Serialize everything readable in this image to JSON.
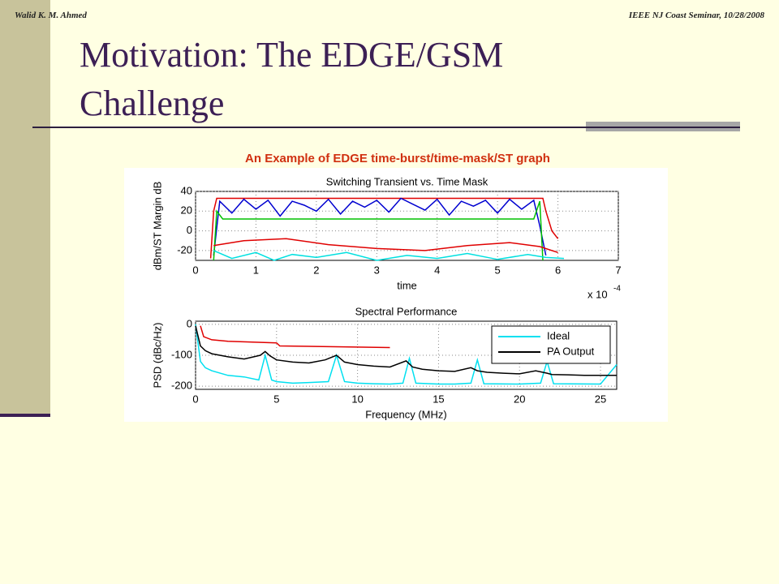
{
  "header": {
    "left": "Walid K. M. Ahmed",
    "right": "IEEE NJ Coast Seminar, 10/28/2008"
  },
  "title": [
    "Motivation: The EDGE/GSM",
    "Challenge"
  ],
  "caption": "An Example of EDGE time-burst/time-mask/ST graph",
  "chart_data": [
    {
      "type": "line",
      "title": "Switching Transient vs. Time Mask",
      "x_label": "time",
      "y_label": "dBm/ST Margin dB",
      "annotations": [
        "x 10",
        "-4"
      ],
      "xlim": [
        0,
        7
      ],
      "xticks": [
        0,
        1,
        2,
        3,
        4,
        5,
        6,
        7
      ],
      "ylim": [
        -30,
        40
      ],
      "yticks": [
        -20,
        0,
        20,
        40
      ],
      "grid": true,
      "series": [
        {
          "color": "#e00000",
          "x": [
            0.25,
            0.3,
            0.35,
            5.75,
            5.8,
            5.9,
            6.0
          ],
          "values": [
            -28,
            20,
            33,
            33,
            20,
            0,
            -8
          ]
        },
        {
          "color": "#0000d0",
          "x": [
            0.3,
            0.4,
            0.6,
            0.8,
            1.0,
            1.2,
            1.4,
            1.6,
            1.8,
            2.0,
            2.2,
            2.4,
            2.6,
            2.8,
            3.0,
            3.2,
            3.4,
            3.6,
            3.8,
            4.0,
            4.2,
            4.4,
            4.6,
            4.8,
            5.0,
            5.2,
            5.4,
            5.6,
            5.7,
            5.8
          ],
          "values": [
            -25,
            30,
            18,
            32,
            22,
            31,
            15,
            30,
            26,
            20,
            32,
            17,
            30,
            24,
            31,
            19,
            33,
            27,
            21,
            32,
            16,
            30,
            25,
            31,
            18,
            32,
            22,
            31,
            5,
            -25
          ]
        },
        {
          "color": "#00c000",
          "x": [
            0.3,
            0.35,
            0.45,
            5.6,
            5.7,
            5.75
          ],
          "values": [
            -30,
            20,
            12,
            12,
            30,
            -30
          ]
        },
        {
          "color": "#e00000",
          "x": [
            0.3,
            0.8,
            1.5,
            2.2,
            3.0,
            3.8,
            4.5,
            5.2,
            5.7,
            6.0
          ],
          "values": [
            -15,
            -10,
            -8,
            -14,
            -18,
            -20,
            -15,
            -12,
            -16,
            -22
          ]
        },
        {
          "color": "#00e0e0",
          "x": [
            0.3,
            0.6,
            1.0,
            1.3,
            1.6,
            2.0,
            2.5,
            3.0,
            3.5,
            4.0,
            4.5,
            5.0,
            5.5,
            5.8,
            6.1
          ],
          "values": [
            -20,
            -28,
            -22,
            -30,
            -24,
            -27,
            -22,
            -30,
            -25,
            -28,
            -23,
            -29,
            -24,
            -27,
            -28
          ]
        }
      ]
    },
    {
      "type": "line",
      "title": "Spectral Performance",
      "x_label": "Frequency (MHz)",
      "y_label": "PSD (dBc/Hz)",
      "xlim": [
        0,
        26
      ],
      "xticks": [
        0,
        5,
        10,
        15,
        20,
        25
      ],
      "ylim": [
        -210,
        10
      ],
      "yticks": [
        -200,
        -100,
        0
      ],
      "grid": true,
      "legend": "upper-right",
      "series": [
        {
          "color": "#e00000",
          "x": [
            0.3,
            0.5,
            1,
            2,
            5,
            5.2,
            12
          ],
          "values": [
            -5,
            -40,
            -50,
            -55,
            -60,
            -70,
            -75
          ]
        },
        {
          "name": "Ideal",
          "color": "#00e0f0",
          "x": [
            0,
            0.3,
            0.6,
            1,
            2,
            3,
            3.9,
            4.3,
            4.7,
            5,
            6,
            7,
            8.2,
            8.7,
            9.2,
            10,
            11,
            12,
            12.8,
            13.2,
            13.6,
            15,
            16,
            17,
            17.4,
            17.8,
            20,
            21.3,
            21.7,
            22.1,
            25,
            26
          ],
          "values": [
            0,
            -120,
            -140,
            -150,
            -165,
            -170,
            -180,
            -100,
            -180,
            -185,
            -190,
            -188,
            -185,
            -100,
            -185,
            -190,
            -192,
            -193,
            -190,
            -110,
            -190,
            -193,
            -193,
            -190,
            -115,
            -192,
            -193,
            -190,
            -120,
            -192,
            -193,
            -130
          ]
        },
        {
          "name": "PA Output",
          "color": "#000000",
          "x": [
            0,
            0.3,
            0.6,
            1,
            2,
            3,
            4,
            4.3,
            4.6,
            5,
            6,
            7,
            8,
            8.7,
            9.2,
            10,
            11,
            12,
            13,
            13.4,
            14,
            15,
            16,
            17,
            17.4,
            18,
            19,
            20,
            21,
            21.7,
            22,
            23,
            24,
            26
          ],
          "values": [
            -5,
            -70,
            -85,
            -95,
            -105,
            -112,
            -100,
            -88,
            -102,
            -115,
            -122,
            -125,
            -115,
            -100,
            -122,
            -130,
            -135,
            -138,
            -118,
            -138,
            -145,
            -150,
            -152,
            -140,
            -150,
            -155,
            -158,
            -160,
            -150,
            -158,
            -162,
            -163,
            -165,
            -165
          ]
        }
      ]
    }
  ]
}
